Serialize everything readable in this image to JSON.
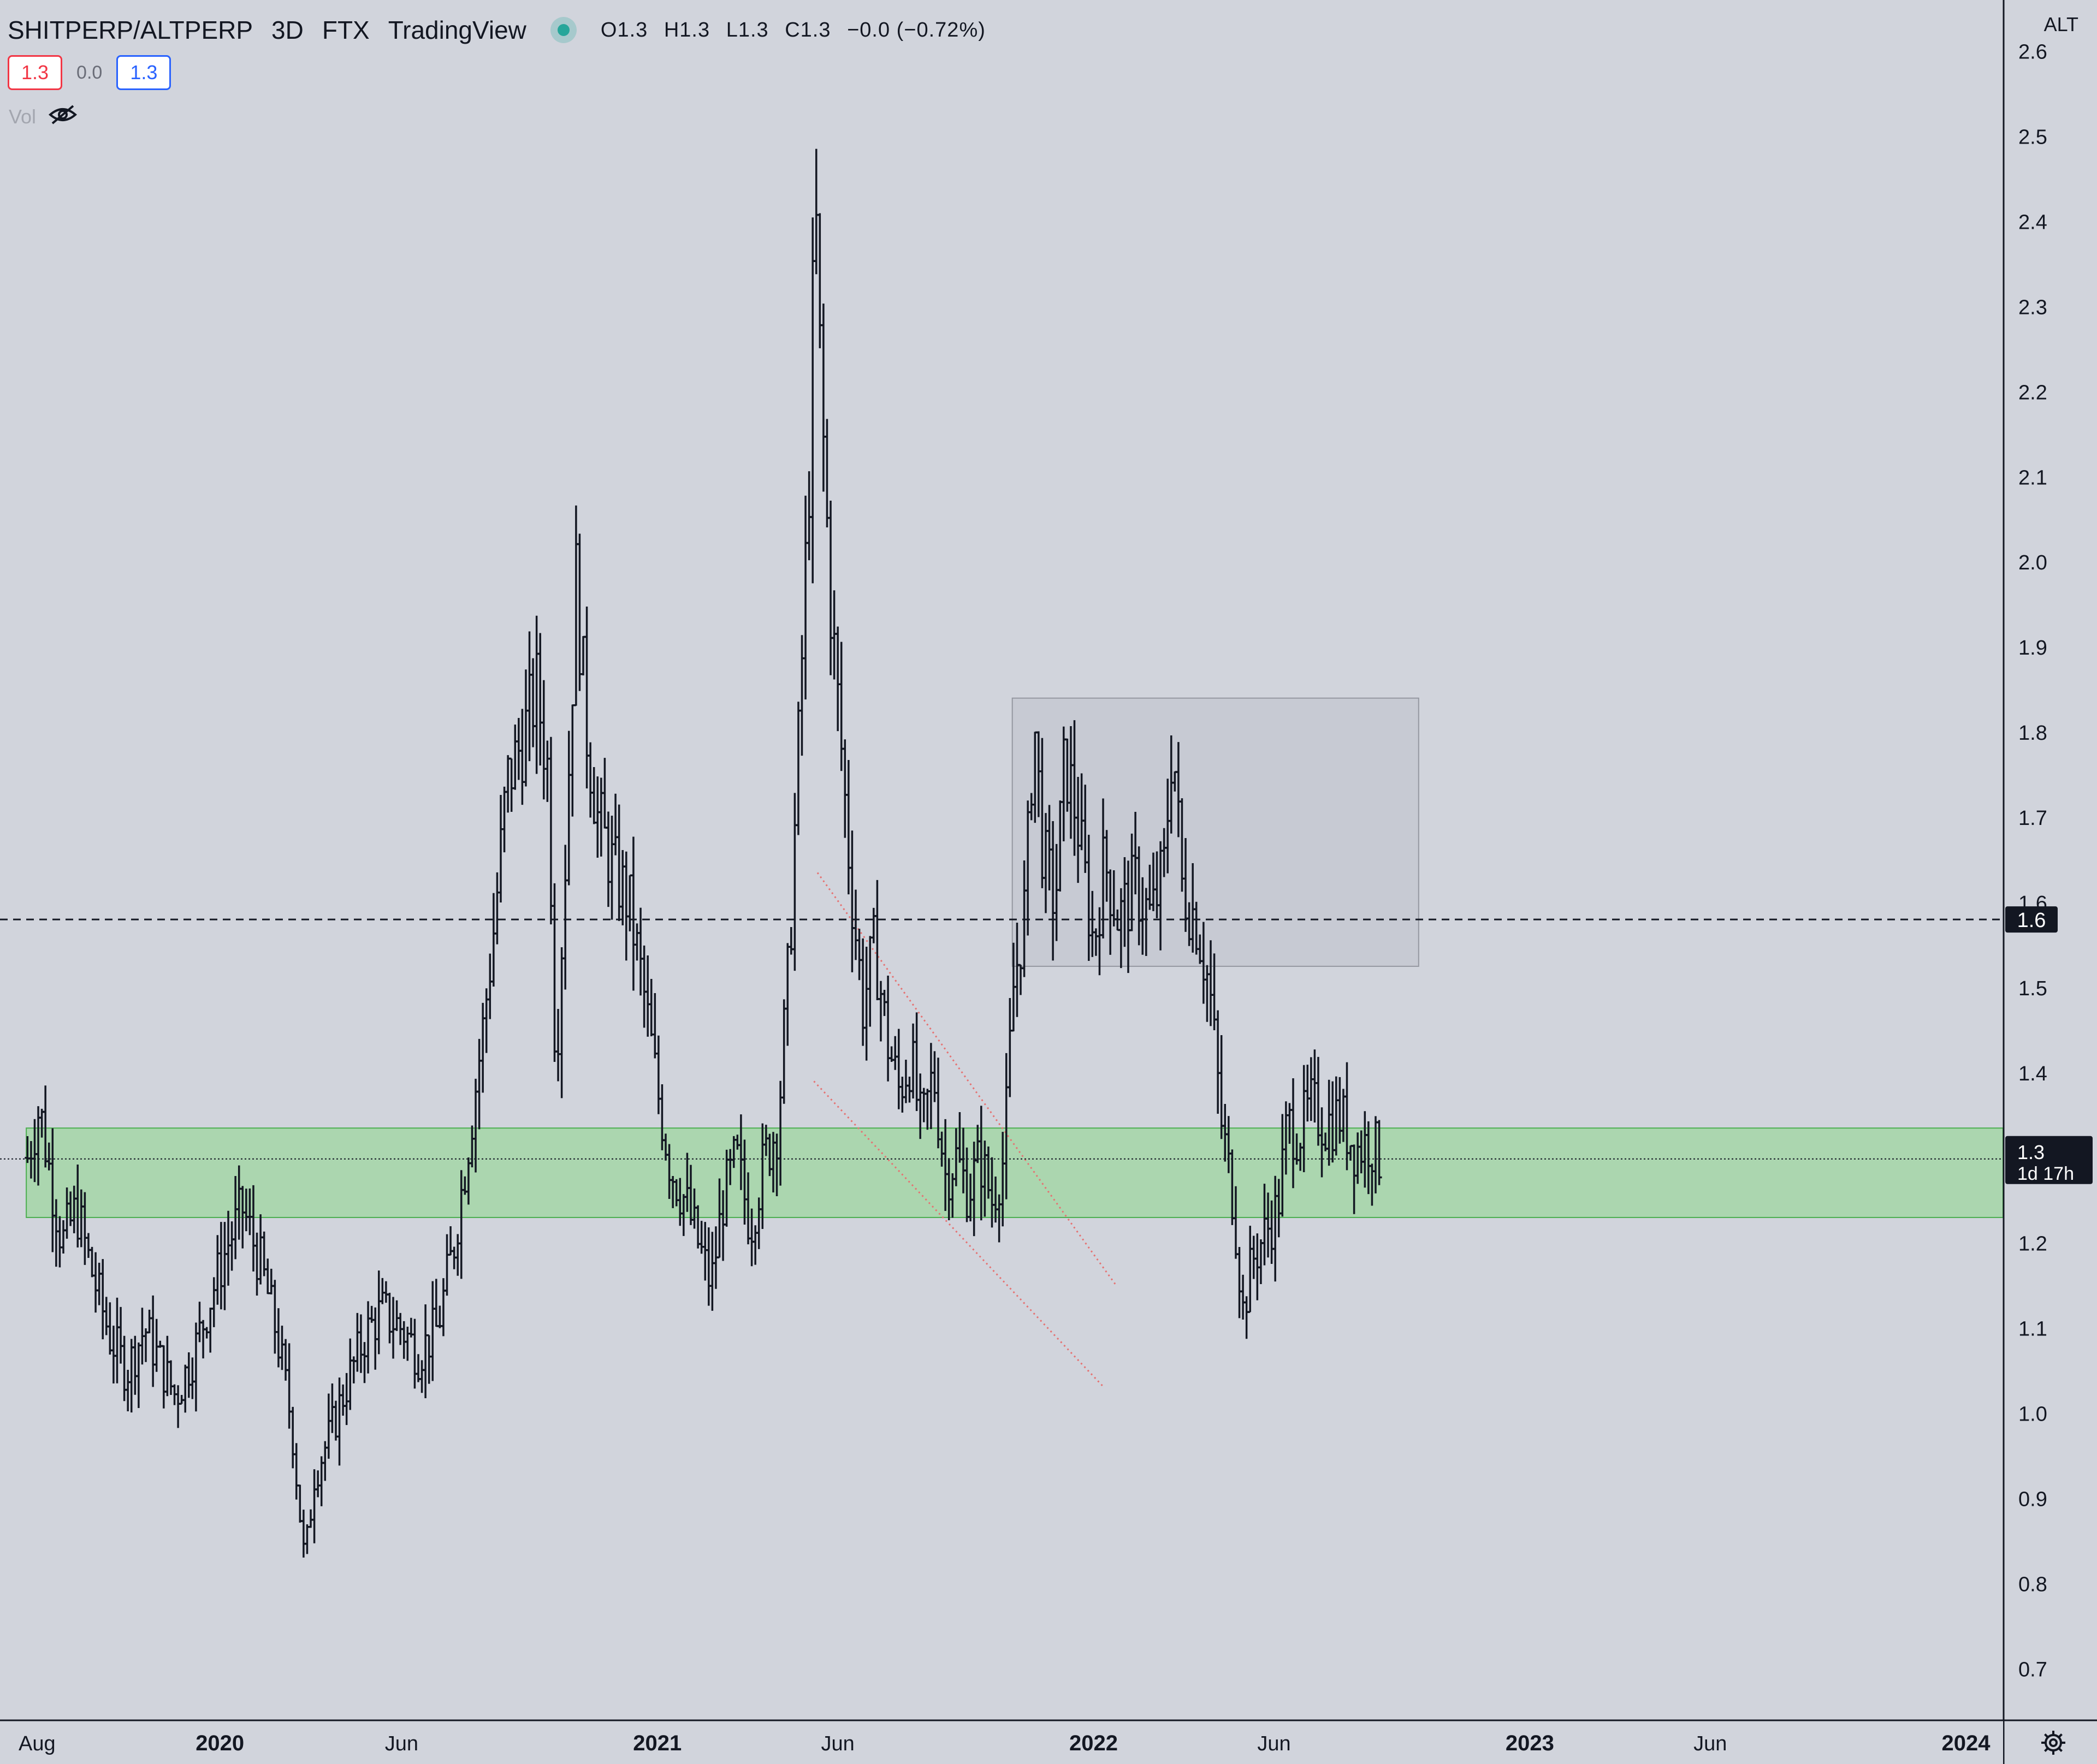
{
  "legend": {
    "symbol": "SHITPERP/ALTPERP",
    "timeframe": "3D",
    "exchange": "FTX",
    "source": "TradingView",
    "ohlc": {
      "o": "O1.3",
      "h": "H1.3",
      "l": "L1.3",
      "c": "C1.3",
      "change": "−0.0 (−0.72%)"
    }
  },
  "price_pills": {
    "sell": "1.3",
    "spread": "0.0",
    "buy": "1.3"
  },
  "volume_label": "Vol",
  "icons": [
    "status-dot-icon",
    "eye-off-icon",
    "gear-icon"
  ],
  "colors": {
    "background": "#d1d4dc",
    "bars": "#131722",
    "support_zone": "#a5d6a7",
    "range_box": "#c3c6ce",
    "trend_lines": "#e57373",
    "dot_live": "#26a69a"
  },
  "chart_data": {
    "type": "ohlc",
    "x_axis": {
      "labels": [
        "Aug",
        "2020",
        "Jun",
        "2021",
        "Jun",
        "2022",
        "Jun",
        "2023",
        "Jun",
        "2024"
      ],
      "range": [
        "2019-07-01",
        "2024-02-01"
      ]
    },
    "y_axis": {
      "unit": "ALT",
      "ticks": [
        0.7,
        0.8,
        0.9,
        1.0,
        1.1,
        1.2,
        1.3,
        1.4,
        1.5,
        1.6,
        1.7,
        1.8,
        1.9,
        2.0,
        2.1,
        2.2,
        2.3,
        2.4,
        2.5,
        2.6
      ],
      "range": [
        0.64,
        2.66
      ],
      "position": "right"
    },
    "last_price": {
      "value": 1.3,
      "label": "1.3",
      "countdown": "1d 17h"
    },
    "hline": {
      "value": 1.58,
      "label": "1.6",
      "style": "dashed"
    },
    "zones": [
      {
        "name": "support-zone",
        "from": "2019-07-23",
        "to": "2024-02-01",
        "low": 1.23,
        "high": 1.335
      },
      {
        "name": "range-box",
        "from": "2021-10-25",
        "to": "2022-09-30",
        "low": 1.525,
        "high": 1.84
      }
    ],
    "trend_lines": [
      {
        "from": [
          "2021-05-15",
          1.635
        ],
        "to": [
          "2022-01-20",
          1.15
        ]
      },
      {
        "from": [
          "2021-05-12",
          1.39
        ],
        "to": [
          "2022-01-10",
          1.03
        ]
      }
    ],
    "path": [
      [
        "2019-07-24",
        1.3
      ],
      [
        "2019-08-03",
        1.36
      ],
      [
        "2019-08-12",
        1.28
      ],
      [
        "2019-08-22",
        1.2
      ],
      [
        "2019-09-03",
        1.24
      ],
      [
        "2019-09-15",
        1.17
      ],
      [
        "2019-10-01",
        1.09
      ],
      [
        "2019-10-15",
        1.05
      ],
      [
        "2019-10-30",
        1.1
      ],
      [
        "2019-11-15",
        1.05
      ],
      [
        "2019-11-25",
        1.02
      ],
      [
        "2019-12-10",
        1.07
      ],
      [
        "2019-12-25",
        1.14
      ],
      [
        "2020-01-08",
        1.2
      ],
      [
        "2020-01-20",
        1.24
      ],
      [
        "2020-02-05",
        1.17
      ],
      [
        "2020-02-18",
        1.09
      ],
      [
        "2020-03-01",
        0.99
      ],
      [
        "2020-03-12",
        0.82
      ],
      [
        "2020-03-20",
        0.93
      ],
      [
        "2020-04-01",
        0.97
      ],
      [
        "2020-04-15",
        1.03
      ],
      [
        "2020-05-01",
        1.09
      ],
      [
        "2020-05-15",
        1.12
      ],
      [
        "2020-06-01",
        1.1
      ],
      [
        "2020-06-15",
        1.07
      ],
      [
        "2020-07-01",
        1.1
      ],
      [
        "2020-07-15",
        1.2
      ],
      [
        "2020-07-28",
        1.33
      ],
      [
        "2020-08-08",
        1.45
      ],
      [
        "2020-08-18",
        1.58
      ],
      [
        "2020-08-28",
        1.74
      ],
      [
        "2020-09-10",
        1.79
      ],
      [
        "2020-09-22",
        1.85
      ],
      [
        "2020-10-02",
        1.75
      ],
      [
        "2020-10-08",
        1.4
      ],
      [
        "2020-10-16",
        1.65
      ],
      [
        "2020-10-25",
        1.98
      ],
      [
        "2020-11-03",
        1.8
      ],
      [
        "2020-11-12",
        1.7
      ],
      [
        "2020-11-25",
        1.64
      ],
      [
        "2020-12-08",
        1.6
      ],
      [
        "2020-12-20",
        1.5
      ],
      [
        "2021-01-01",
        1.38
      ],
      [
        "2021-01-12",
        1.29
      ],
      [
        "2021-01-24",
        1.25
      ],
      [
        "2021-02-04",
        1.2
      ],
      [
        "2021-02-15",
        1.15
      ],
      [
        "2021-02-25",
        1.25
      ],
      [
        "2021-03-08",
        1.3
      ],
      [
        "2021-03-20",
        1.22
      ],
      [
        "2021-04-01",
        1.3
      ],
      [
        "2021-04-12",
        1.34
      ],
      [
        "2021-04-22",
        1.55
      ],
      [
        "2021-05-01",
        1.85
      ],
      [
        "2021-05-08",
        2.1
      ],
      [
        "2021-05-13",
        2.43
      ],
      [
        "2021-05-18",
        2.2
      ],
      [
        "2021-05-26",
        1.95
      ],
      [
        "2021-06-04",
        1.78
      ],
      [
        "2021-06-12",
        1.62
      ],
      [
        "2021-06-22",
        1.48
      ],
      [
        "2021-07-02",
        1.55
      ],
      [
        "2021-07-12",
        1.44
      ],
      [
        "2021-07-22",
        1.38
      ],
      [
        "2021-08-01",
        1.42
      ],
      [
        "2021-08-10",
        1.33
      ],
      [
        "2021-08-20",
        1.4
      ],
      [
        "2021-08-30",
        1.28
      ],
      [
        "2021-09-08",
        1.3
      ],
      [
        "2021-09-18",
        1.26
      ],
      [
        "2021-09-28",
        1.3
      ],
      [
        "2021-10-08",
        1.25
      ],
      [
        "2021-10-18",
        1.3
      ],
      [
        "2021-10-26",
        1.5
      ],
      [
        "2021-11-05",
        1.6
      ],
      [
        "2021-11-12",
        1.82
      ],
      [
        "2021-11-20",
        1.65
      ],
      [
        "2021-11-30",
        1.6
      ],
      [
        "2021-12-08",
        1.77
      ],
      [
        "2021-12-18",
        1.7
      ],
      [
        "2022-01-01",
        1.55
      ],
      [
        "2022-01-10",
        1.65
      ],
      [
        "2022-01-22",
        1.58
      ],
      [
        "2022-02-05",
        1.62
      ],
      [
        "2022-02-18",
        1.58
      ],
      [
        "2022-03-01",
        1.64
      ],
      [
        "2022-03-08",
        1.8
      ],
      [
        "2022-03-16",
        1.62
      ],
      [
        "2022-03-28",
        1.58
      ],
      [
        "2022-04-08",
        1.5
      ],
      [
        "2022-04-18",
        1.34
      ],
      [
        "2022-04-28",
        1.25
      ],
      [
        "2022-05-06",
        1.12
      ],
      [
        "2022-05-14",
        1.18
      ],
      [
        "2022-05-24",
        1.21
      ],
      [
        "2022-06-04",
        1.24
      ],
      [
        "2022-06-12",
        1.34
      ],
      [
        "2022-06-22",
        1.33
      ],
      [
        "2022-07-02",
        1.36
      ],
      [
        "2022-07-14",
        1.34
      ],
      [
        "2022-07-26",
        1.35
      ],
      [
        "2022-08-08",
        1.31
      ],
      [
        "2022-08-20",
        1.32
      ],
      [
        "2022-08-28",
        1.3
      ]
    ]
  }
}
